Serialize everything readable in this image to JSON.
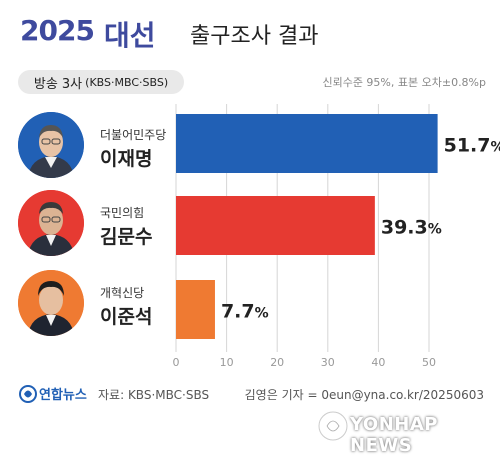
{
  "header": {
    "year": "2025",
    "election": "대선",
    "subtitle": "출구조사 결과"
  },
  "broadcaster": {
    "main": "방송 3사",
    "detail": "(KBS·MBC·SBS)"
  },
  "confidence": "신뢰수준 95%, 표본 오차±0.8%p",
  "candidates": [
    {
      "party": "더불어민주당",
      "name": "이재명",
      "color": "#2160b5",
      "value_label": "51.7%"
    },
    {
      "party": "국민의힘",
      "name": "김문수",
      "color": "#e63a32",
      "value_label": "39.3%"
    },
    {
      "party": "개혁신당",
      "name": "이준석",
      "color": "#ef7a32",
      "value_label": "7.7%"
    }
  ],
  "chart_data": {
    "type": "bar",
    "orientation": "horizontal",
    "categories": [
      "이재명",
      "김문수",
      "이준석"
    ],
    "values": [
      51.7,
      39.3,
      7.7
    ],
    "colors": [
      "#2160b5",
      "#e63a32",
      "#ef7a32"
    ],
    "xlim": [
      0,
      50
    ],
    "xticks": [
      "0",
      "10",
      "20",
      "30",
      "40",
      "50"
    ],
    "grid": true
  },
  "footer": {
    "logo": "연합뉴스",
    "source": "자료: KBS·MBC·SBS",
    "reporter": "김영은 기자 = 0eun@yna.co.kr/20250603"
  },
  "watermark": "YONHAP NEWS"
}
